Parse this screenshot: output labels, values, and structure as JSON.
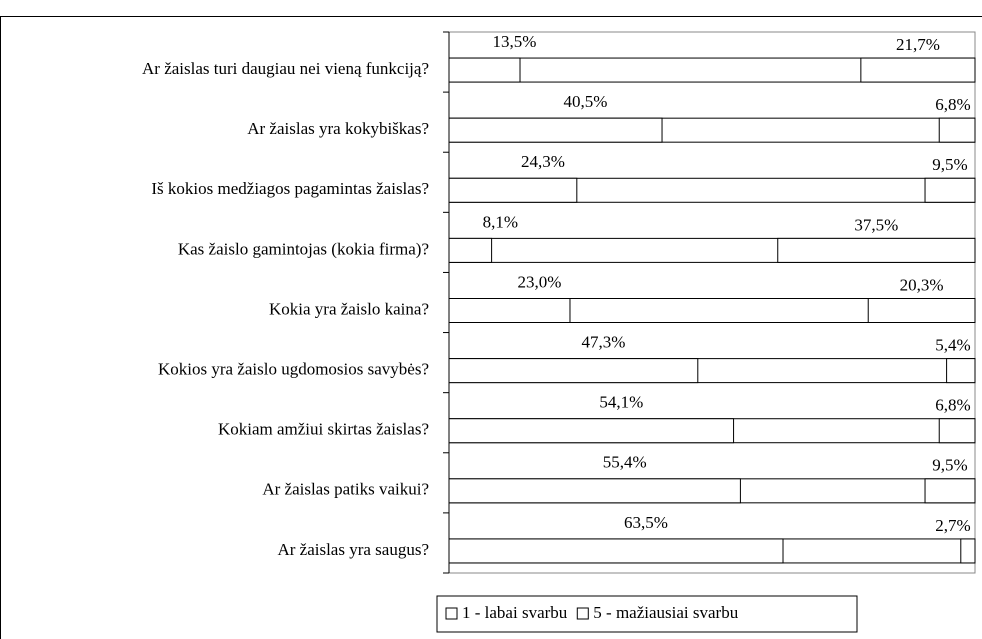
{
  "chart_data": {
    "type": "bar",
    "orientation": "horizontal",
    "categories": [
      "Ar žaislas turi daugiau nei vieną funkciją?",
      "Ar žaislas yra kokybiškas?",
      "Iš kokios medžiagos pagamintas žaislas?",
      "Kas žaislo gamintojas (kokia firma)?",
      "Kokia yra žaislo kaina?",
      "Kokios yra žaislo ugdomosios savybės?",
      "Kokiam amžiui skirtas žaislas?",
      "Ar žaislas patiks vaikui?",
      "Ar žaislas yra saugus?"
    ],
    "series": [
      {
        "name": "1 - labai svarbu",
        "color": "#ffffff",
        "values": [
          13.5,
          40.5,
          24.3,
          8.1,
          23.0,
          47.3,
          54.1,
          55.4,
          63.5
        ],
        "value_labels": [
          "13,5%",
          "40,5%",
          "24,3%",
          "8,1%",
          "23,0%",
          "47,3%",
          "54,1%",
          "55,4%",
          "63,5%"
        ]
      },
      {
        "name": "5 - mažiausiai svarbu",
        "color": "#ffffff",
        "values": [
          21.7,
          6.8,
          9.5,
          37.5,
          20.3,
          5.4,
          6.8,
          9.5,
          2.7
        ],
        "value_labels": [
          "21,7%",
          "6,8%",
          "9,5%",
          "37,5%",
          "20,3%",
          "5,4%",
          "6,8%",
          "9,5%",
          "2,7%"
        ]
      }
    ],
    "xlim": [
      0,
      100
    ]
  }
}
